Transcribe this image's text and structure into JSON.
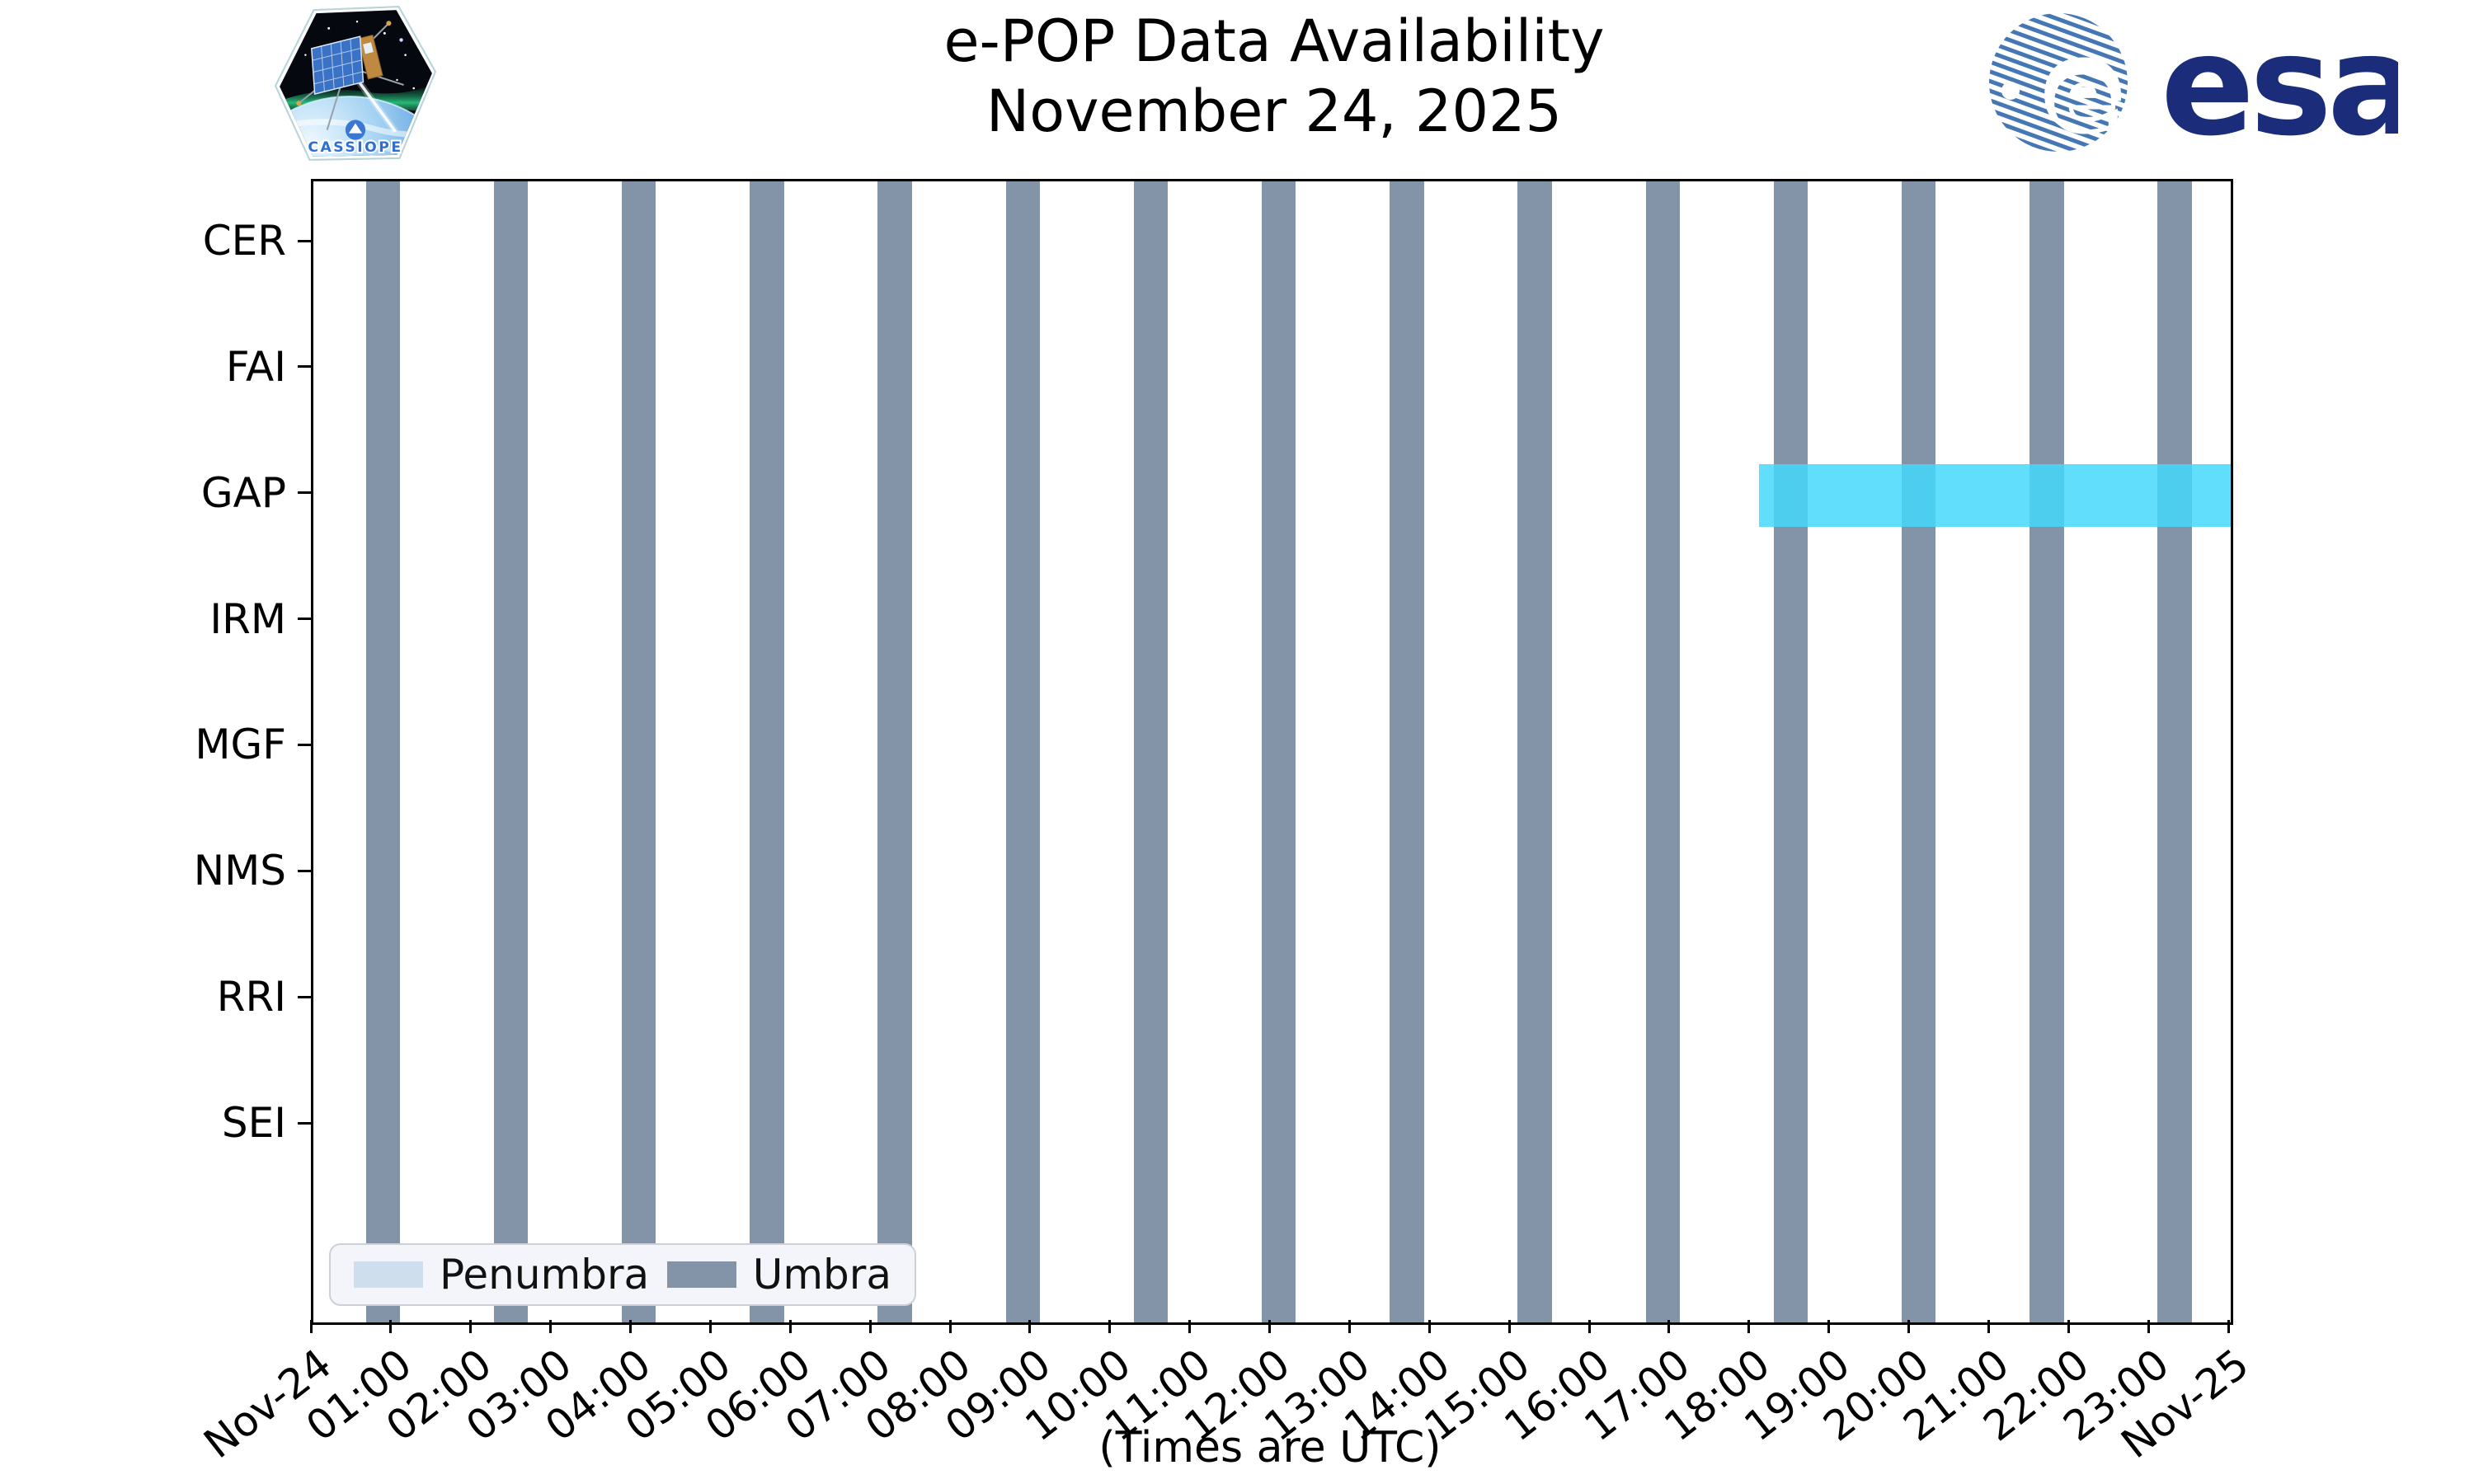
{
  "title": {
    "line1": "e-POP Data Availability",
    "line2": "November 24, 2025"
  },
  "branding": {
    "cassiope_label": "CASSIOPE",
    "esa_wordmark": "esa"
  },
  "chart_data": {
    "type": "timeline",
    "description": "Instrument data availability timeline with orbital eclipse (umbra/penumbra) shading",
    "instruments": [
      "CER",
      "FAI",
      "GAP",
      "IRM",
      "MGF",
      "NMS",
      "RRI",
      "SEI"
    ],
    "xlabel": "(Times are UTC)",
    "x_range_hours": [
      0,
      24
    ],
    "x_tick_labels": [
      "Nov-24",
      "01:00",
      "02:00",
      "03:00",
      "04:00",
      "05:00",
      "06:00",
      "07:00",
      "08:00",
      "09:00",
      "10:00",
      "11:00",
      "12:00",
      "13:00",
      "14:00",
      "15:00",
      "16:00",
      "17:00",
      "18:00",
      "19:00",
      "20:00",
      "21:00",
      "22:00",
      "23:00",
      "Nov-25"
    ],
    "umbra_intervals_hours": [
      [
        0.66,
        1.08
      ],
      [
        2.26,
        2.68
      ],
      [
        3.86,
        4.28
      ],
      [
        5.46,
        5.89
      ],
      [
        7.06,
        7.49
      ],
      [
        8.67,
        9.09
      ],
      [
        10.27,
        10.69
      ],
      [
        11.87,
        12.29
      ],
      [
        13.47,
        13.9
      ],
      [
        15.07,
        15.5
      ],
      [
        16.68,
        17.1
      ],
      [
        18.28,
        18.7
      ],
      [
        19.88,
        20.3
      ],
      [
        21.48,
        21.91
      ],
      [
        23.08,
        23.51
      ]
    ],
    "availability": [
      {
        "instrument": "GAP",
        "start_hour": 18.1,
        "end_hour": 24.0,
        "color": "rgba(68, 216, 250, 0.85)"
      }
    ],
    "legend": [
      {
        "label": "Penumbra",
        "color": "#CEDEEC"
      },
      {
        "label": "Umbra",
        "color": "#8494A8"
      }
    ],
    "legend_position": "lower left",
    "grid": false
  },
  "colors": {
    "umbra": "#8494A8",
    "penumbra": "#CEDEEC",
    "availability_cyan": "rgba(68, 216, 250, 0.85)",
    "axis": "#000000",
    "esa_blue": "#1b2d7a",
    "esa_globe_stripe": "#4577b4",
    "cassiope_text": "#2e6fd2"
  }
}
